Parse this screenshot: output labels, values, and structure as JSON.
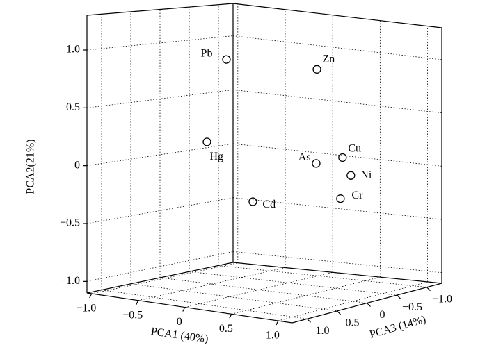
{
  "chart_data": {
    "type": "scatter3d",
    "x_label": "PCA1 (40%)",
    "y_label": "PCA2(21%)",
    "z_label": "PCA3 (14%)",
    "labels": [
      "Pb",
      "Zn",
      "Hg",
      "As",
      "Cu",
      "Ni",
      "Cr",
      "Cd"
    ],
    "x": [
      -0.03,
      0.46,
      -0.08,
      0.61,
      0.89,
      0.82,
      0.71,
      -0.22
    ],
    "y": [
      0.98,
      0.9,
      0.27,
      0.09,
      0.17,
      -0.02,
      -0.24,
      -0.36
    ],
    "z": [
      0.5,
      -0.25,
      0.75,
      0,
      0,
      -0.25,
      -0.25,
      -0.25
    ],
    "xlim": [
      -1.05,
      1.15
    ],
    "ylim": [
      -1.1,
      1.3
    ],
    "zlim": [
      -1.25,
      1.25
    ],
    "xticks": [
      {
        "value": -1,
        "label": "−1.0"
      },
      {
        "value": -0.5,
        "label": "−0.5"
      },
      0,
      0.5,
      {
        "value": 1,
        "label": "1.0"
      }
    ],
    "yticks": [
      {
        "value": -1,
        "label": "−1.0"
      },
      {
        "value": -0.5,
        "label": "−0.5"
      },
      0,
      0.5,
      {
        "value": 1,
        "label": "1.0"
      }
    ],
    "zticks": [
      {
        "value": -1,
        "label": "−1.0"
      },
      {
        "value": -0.5,
        "label": "−0.5"
      },
      0,
      0.5,
      {
        "value": 1,
        "label": "1.0"
      }
    ],
    "grid": true,
    "color": "#000000"
  }
}
